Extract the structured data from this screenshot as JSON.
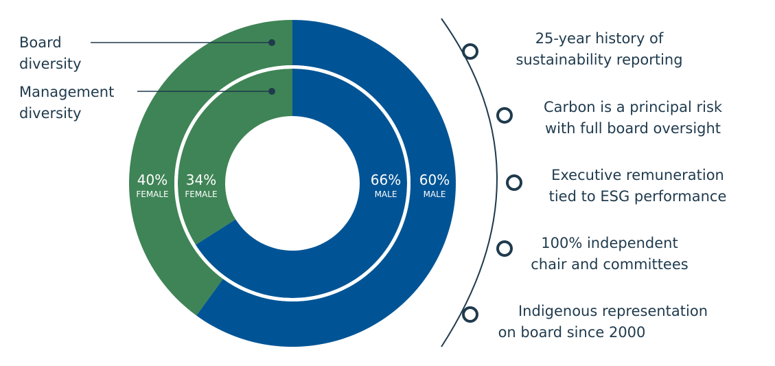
{
  "colors": {
    "female": "#3f8456",
    "male": "#005495",
    "text": "#1f3a4d",
    "ring_gap": "#ffffff"
  },
  "chart_data": [
    {
      "type": "pie",
      "variant": "donut",
      "ring": "outer",
      "label": "Board diversity",
      "categories": [
        "FEMALE",
        "MALE"
      ],
      "values": [
        40,
        60
      ],
      "value_labels": [
        "40%",
        "60%"
      ]
    },
    {
      "type": "pie",
      "variant": "donut",
      "ring": "inner",
      "label": "Management diversity",
      "categories": [
        "FEMALE",
        "MALE"
      ],
      "values": [
        34,
        66
      ],
      "value_labels": [
        "34%",
        "66%"
      ]
    }
  ],
  "legend": {
    "board": [
      "Board",
      "diversity"
    ],
    "management": [
      "Management",
      "diversity"
    ]
  },
  "facts": [
    {
      "lines": [
        "25-year history of",
        "sustainability reporting"
      ]
    },
    {
      "lines": [
        "Carbon is a principal risk",
        "with full board oversight"
      ]
    },
    {
      "lines": [
        "Executive remuneration",
        "tied to ESG performance"
      ]
    },
    {
      "lines": [
        "100% independent",
        "chair and committees"
      ]
    },
    {
      "lines": [
        "Indigenous representation",
        "on board since 2000"
      ]
    }
  ]
}
